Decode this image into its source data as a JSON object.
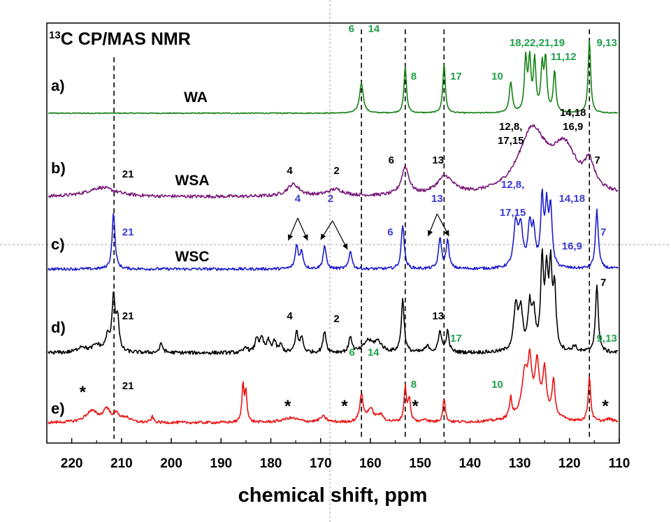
{
  "chart_data": {
    "type": "line",
    "title": "CP/MAS NMR",
    "title_isotope": "13C",
    "title_superscript": "13",
    "title_main": "C CP/MAS NMR",
    "xlabel": "chemical shift, ppm",
    "ylabel": "",
    "xlim": [
      225,
      110
    ],
    "x_reversed": true,
    "x_ticks": [
      220,
      210,
      200,
      190,
      180,
      170,
      160,
      150,
      140,
      130,
      120,
      110
    ],
    "grid": false,
    "dashed_reference_lines_ppm": [
      211.5,
      161.8,
      153.0,
      145.2,
      116.0
    ],
    "series": [
      {
        "panel": "a)",
        "name": "WA",
        "color": "#138013",
        "peaks": [
          {
            "ppm": 161.8,
            "h": 0.6,
            "w": 0.45
          },
          {
            "ppm": 153.0,
            "h": 0.92,
            "w": 0.3
          },
          {
            "ppm": 145.2,
            "h": 0.98,
            "w": 0.3
          },
          {
            "ppm": 131.8,
            "h": 0.6,
            "w": 0.35
          },
          {
            "ppm": 128.8,
            "h": 1.05,
            "w": 0.3
          },
          {
            "ppm": 128.0,
            "h": 1.0,
            "w": 0.3
          },
          {
            "ppm": 127.0,
            "h": 1.0,
            "w": 0.3
          },
          {
            "ppm": 125.5,
            "h": 0.88,
            "w": 0.3
          },
          {
            "ppm": 124.8,
            "h": 1.02,
            "w": 0.3
          },
          {
            "ppm": 123.0,
            "h": 0.82,
            "w": 0.3
          },
          {
            "ppm": 116.0,
            "h": 1.45,
            "w": 0.3
          }
        ],
        "peak_labels": [
          {
            "text": "6",
            "ppm": 163.8,
            "row": "top"
          },
          {
            "text": "14",
            "ppm": 159.3,
            "row": "top"
          },
          {
            "text": "8",
            "ppm": 151.3,
            "row": "mid"
          },
          {
            "text": "17",
            "ppm": 142.8,
            "row": "mid"
          },
          {
            "text": "10",
            "ppm": 134.5,
            "row": "mid"
          },
          {
            "text": "18,22,21,19",
            "ppm": 126.5,
            "row": "high"
          },
          {
            "text": "11,12",
            "ppm": 121.2,
            "row": "highmid"
          },
          {
            "text": "9,13",
            "ppm": 112.5,
            "row": "high"
          }
        ]
      },
      {
        "panel": "b)",
        "name": "WSA",
        "color": "#7a1a7a",
        "peaks": [
          {
            "ppm": 214.0,
            "h": 0.14,
            "w": 3.5
          },
          {
            "ppm": 175.5,
            "h": 0.18,
            "w": 1.5
          },
          {
            "ppm": 167.0,
            "h": 0.1,
            "w": 2.0
          },
          {
            "ppm": 153.0,
            "h": 0.42,
            "w": 0.9
          },
          {
            "ppm": 145.0,
            "h": 0.27,
            "w": 2.0
          },
          {
            "ppm": 127.5,
            "h": 0.95,
            "w": 3.4
          },
          {
            "ppm": 121.0,
            "h": 0.65,
            "w": 3.0
          },
          {
            "ppm": 116.0,
            "h": 0.38,
            "w": 1.2
          }
        ],
        "peak_labels": [
          {
            "text": "21",
            "ppm": 208.7,
            "row": "low"
          },
          {
            "text": "4",
            "ppm": 176.2,
            "row": "low2"
          },
          {
            "text": "2",
            "ppm": 166.8,
            "row": "low2"
          },
          {
            "text": "6",
            "ppm": 155.8,
            "row": "mid"
          },
          {
            "text": "13",
            "ppm": 146.4,
            "row": "mid"
          },
          {
            "text": "12,8,",
            "ppm": 131.8,
            "row": "high"
          },
          {
            "text": "17,15",
            "ppm": 131.8,
            "row": "highmid"
          },
          {
            "text": "14,18",
            "ppm": 119.3,
            "row": "top"
          },
          {
            "text": "16,9",
            "ppm": 119.3,
            "row": "high2"
          },
          {
            "text": "7",
            "ppm": 114.4,
            "row": "mid"
          }
        ]
      },
      {
        "panel": "c)",
        "name": "WSC",
        "color": "#1c1ccc",
        "peaks": [
          {
            "ppm": 211.6,
            "h": 1.0,
            "w": 0.35
          },
          {
            "ppm": 174.8,
            "h": 0.42,
            "w": 0.35
          },
          {
            "ppm": 173.8,
            "h": 0.3,
            "w": 0.35
          },
          {
            "ppm": 169.2,
            "h": 0.42,
            "w": 0.35
          },
          {
            "ppm": 164.0,
            "h": 0.33,
            "w": 0.35
          },
          {
            "ppm": 153.5,
            "h": 0.8,
            "w": 0.35
          },
          {
            "ppm": 146.0,
            "h": 0.55,
            "w": 0.35
          },
          {
            "ppm": 144.5,
            "h": 0.5,
            "w": 0.35
          },
          {
            "ppm": 130.8,
            "h": 0.75,
            "w": 0.5
          },
          {
            "ppm": 129.8,
            "h": 0.7,
            "w": 0.5
          },
          {
            "ppm": 128.0,
            "h": 0.72,
            "w": 0.4
          },
          {
            "ppm": 127.2,
            "h": 0.6,
            "w": 0.4
          },
          {
            "ppm": 125.5,
            "h": 1.18,
            "w": 0.35
          },
          {
            "ppm": 124.6,
            "h": 1.0,
            "w": 0.35
          },
          {
            "ppm": 123.8,
            "h": 1.05,
            "w": 0.35
          },
          {
            "ppm": 114.5,
            "h": 1.05,
            "w": 0.35
          }
        ],
        "peak_labels": [
          {
            "text": "21",
            "ppm": 208.7,
            "row": "mid"
          },
          {
            "text": "4",
            "ppm": 174.6,
            "row": "high"
          },
          {
            "text": "2",
            "ppm": 168.0,
            "row": "high"
          },
          {
            "text": "6",
            "ppm": 156.0,
            "row": "mid"
          },
          {
            "text": "13",
            "ppm": 146.6,
            "row": "high"
          },
          {
            "text": "12,8,",
            "ppm": 131.4,
            "row": "top"
          },
          {
            "text": "17,15",
            "ppm": 131.4,
            "row": "highmid"
          },
          {
            "text": "14,18",
            "ppm": 119.5,
            "row": "high"
          },
          {
            "text": "16,9",
            "ppm": 119.5,
            "row": "midlow"
          },
          {
            "text": "7",
            "ppm": 113.2,
            "row": "mid"
          }
        ]
      },
      {
        "panel": "d)",
        "name": "",
        "color": "#000000",
        "peaks": [
          {
            "ppm": 218.0,
            "h": 0.08,
            "w": 1.0
          },
          {
            "ppm": 215.0,
            "h": 0.1,
            "w": 1.0
          },
          {
            "ppm": 212.8,
            "h": 0.2,
            "w": 0.5
          },
          {
            "ppm": 211.6,
            "h": 0.75,
            "w": 0.35
          },
          {
            "ppm": 210.8,
            "h": 0.45,
            "w": 0.35
          },
          {
            "ppm": 202.0,
            "h": 0.12,
            "w": 0.4
          },
          {
            "ppm": 185.0,
            "h": 0.08,
            "w": 0.4
          },
          {
            "ppm": 182.8,
            "h": 0.2,
            "w": 0.4
          },
          {
            "ppm": 181.8,
            "h": 0.18,
            "w": 0.4
          },
          {
            "ppm": 180.5,
            "h": 0.15,
            "w": 0.4
          },
          {
            "ppm": 179.3,
            "h": 0.15,
            "w": 0.4
          },
          {
            "ppm": 178.0,
            "h": 0.1,
            "w": 0.4
          },
          {
            "ppm": 174.8,
            "h": 0.28,
            "w": 0.35
          },
          {
            "ppm": 173.8,
            "h": 0.2,
            "w": 0.35
          },
          {
            "ppm": 169.2,
            "h": 0.3,
            "w": 0.35
          },
          {
            "ppm": 164.0,
            "h": 0.22,
            "w": 0.35
          },
          {
            "ppm": 160.5,
            "h": 0.15,
            "w": 1.0
          },
          {
            "ppm": 158.5,
            "h": 0.14,
            "w": 1.0
          },
          {
            "ppm": 153.5,
            "h": 0.72,
            "w": 0.35
          },
          {
            "ppm": 148.5,
            "h": 0.08,
            "w": 0.6
          },
          {
            "ppm": 146.0,
            "h": 0.3,
            "w": 0.35
          },
          {
            "ppm": 144.5,
            "h": 0.28,
            "w": 0.35
          },
          {
            "ppm": 130.8,
            "h": 0.58,
            "w": 0.5
          },
          {
            "ppm": 129.8,
            "h": 0.52,
            "w": 0.5
          },
          {
            "ppm": 128.0,
            "h": 0.58,
            "w": 0.4
          },
          {
            "ppm": 127.2,
            "h": 0.48,
            "w": 0.4
          },
          {
            "ppm": 125.5,
            "h": 1.18,
            "w": 0.35
          },
          {
            "ppm": 124.6,
            "h": 0.95,
            "w": 0.35
          },
          {
            "ppm": 123.8,
            "h": 1.05,
            "w": 0.35
          },
          {
            "ppm": 123.0,
            "h": 0.8,
            "w": 0.35
          },
          {
            "ppm": 119.0,
            "h": 0.08,
            "w": 0.5
          },
          {
            "ppm": 114.5,
            "h": 0.9,
            "w": 0.35
          }
        ],
        "peak_labels": [
          {
            "text": "21",
            "ppm": 208.7,
            "row": "mid"
          },
          {
            "text": "4",
            "ppm": 176.2,
            "row": "mid"
          },
          {
            "text": "2",
            "ppm": 166.8,
            "row": "mid2"
          },
          {
            "text": "13",
            "ppm": 146.4,
            "row": "mid"
          },
          {
            "text": "7",
            "ppm": 113.2,
            "row": "high"
          }
        ]
      },
      {
        "panel": "e)",
        "name": "",
        "color": "#ee1111",
        "peaks": [
          {
            "ppm": 216.0,
            "h": 0.2,
            "w": 1.5
          },
          {
            "ppm": 213.0,
            "h": 0.22,
            "w": 0.8
          },
          {
            "ppm": 211.0,
            "h": 0.14,
            "w": 0.8
          },
          {
            "ppm": 209.0,
            "h": 0.08,
            "w": 0.8
          },
          {
            "ppm": 203.8,
            "h": 0.1,
            "w": 0.3
          },
          {
            "ppm": 185.6,
            "h": 0.65,
            "w": 0.25
          },
          {
            "ppm": 185.0,
            "h": 0.55,
            "w": 0.25
          },
          {
            "ppm": 176.0,
            "h": 0.08,
            "w": 2.0
          },
          {
            "ppm": 169.5,
            "h": 0.1,
            "w": 0.8
          },
          {
            "ppm": 161.8,
            "h": 0.48,
            "w": 0.4
          },
          {
            "ppm": 160.0,
            "h": 0.22,
            "w": 0.8
          },
          {
            "ppm": 158.0,
            "h": 0.12,
            "w": 0.8
          },
          {
            "ppm": 153.0,
            "h": 0.6,
            "w": 0.3
          },
          {
            "ppm": 152.2,
            "h": 0.4,
            "w": 0.3
          },
          {
            "ppm": 149.0,
            "h": 0.06,
            "w": 0.5
          },
          {
            "ppm": 145.2,
            "h": 0.42,
            "w": 0.3
          },
          {
            "ppm": 131.8,
            "h": 0.35,
            "w": 0.3
          },
          {
            "ppm": 129.0,
            "h": 0.68,
            "w": 0.6
          },
          {
            "ppm": 128.0,
            "h": 0.72,
            "w": 0.4
          },
          {
            "ppm": 126.5,
            "h": 0.7,
            "w": 0.4
          },
          {
            "ppm": 125.0,
            "h": 0.72,
            "w": 0.4
          },
          {
            "ppm": 123.2,
            "h": 0.62,
            "w": 0.35
          },
          {
            "ppm": 127.0,
            "h": 0.4,
            "w": 2.5
          },
          {
            "ppm": 116.0,
            "h": 0.8,
            "w": 0.3
          },
          {
            "ppm": 112.0,
            "h": 0.05,
            "w": 1.0
          }
        ],
        "peak_labels": [
          {
            "text": "6",
            "ppm": 163.7,
            "row": "high"
          },
          {
            "text": "14",
            "ppm": 159.4,
            "row": "high"
          },
          {
            "text": "8",
            "ppm": 151.3,
            "row": "highb"
          },
          {
            "text": "17",
            "ppm": 142.8,
            "row": "top"
          },
          {
            "text": "10",
            "ppm": 134.5,
            "row": "highb"
          },
          {
            "text": "9,13",
            "ppm": 112.5,
            "row": "top"
          },
          {
            "text": "21",
            "ppm": 208.7,
            "row": "mid"
          }
        ],
        "asterisks": [
          {
            "text": "*",
            "ppm": 217.8,
            "row": "mid"
          },
          {
            "text": "*",
            "ppm": 176.6,
            "row": "low"
          },
          {
            "text": "*",
            "ppm": 165.2,
            "row": "midlow"
          },
          {
            "text": "*",
            "ppm": 151.0,
            "row": "midlow"
          },
          {
            "text": "*",
            "ppm": 112.8,
            "row": "low"
          }
        ]
      }
    ]
  },
  "colors": {
    "frame": "#000000",
    "dashed": "#000000",
    "crosshair": "#a0a0a0",
    "label_green": "#1fa04a",
    "label_blue": "#3a3ad4",
    "label_black": "#000000"
  }
}
